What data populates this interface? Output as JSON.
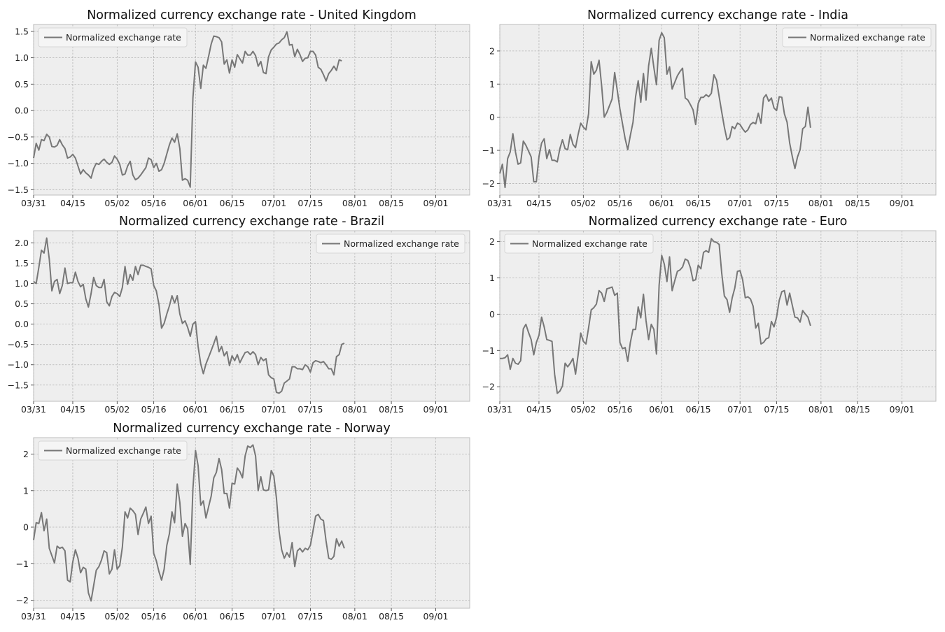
{
  "chart_data": [
    {
      "type": "line",
      "title": "Normalized currency exchange rate - United Kingdom",
      "legend_location": "upper left",
      "grid": true,
      "line_color": "#777777",
      "x_tick_labels": [
        "03/31",
        "04/15",
        "05/02",
        "05/16",
        "06/01",
        "06/15",
        "07/01",
        "07/15",
        "08/01",
        "08/15",
        "09/01"
      ],
      "x_tick_dates": [
        "03/31",
        "04/15",
        "05/02",
        "05/16",
        "06/01",
        "06/15",
        "07/01",
        "07/15",
        "08/01",
        "08/15",
        "09/01"
      ],
      "x_range": [
        "03/31",
        "09/14"
      ],
      "ylim": [
        -1.6,
        1.63
      ],
      "y_ticks": [
        -1.5,
        -1.0,
        -0.5,
        0.0,
        0.5,
        1.0,
        1.5
      ],
      "y_tick_format": 1,
      "series": [
        {
          "name": "Normalized exchange rate",
          "x_start": "03/31",
          "values": [
            -0.9,
            -0.62,
            -0.75,
            -0.55,
            -0.57,
            -0.45,
            -0.5,
            -0.68,
            -0.69,
            -0.66,
            -0.55,
            -0.65,
            -0.72,
            -0.9,
            -0.88,
            -0.83,
            -0.9,
            -1.05,
            -1.2,
            -1.12,
            -1.18,
            -1.22,
            -1.28,
            -1.1,
            -1.0,
            -1.02,
            -0.96,
            -0.92,
            -0.98,
            -1.02,
            -0.98,
            -0.86,
            -0.92,
            -1.02,
            -1.22,
            -1.2,
            -1.05,
            -0.96,
            -1.22,
            -1.31,
            -1.28,
            -1.22,
            -1.15,
            -1.08,
            -0.9,
            -0.93,
            -1.08,
            -1.0,
            -1.15,
            -1.12,
            -1.0,
            -0.82,
            -0.65,
            -0.52,
            -0.6,
            -0.44,
            -0.72,
            -1.32,
            -1.29,
            -1.32,
            -1.45,
            0.24,
            0.92,
            0.82,
            0.42,
            0.86,
            0.8,
            1.02,
            1.26,
            1.41,
            1.4,
            1.38,
            1.3,
            0.88,
            0.96,
            0.71,
            0.96,
            0.82,
            1.06,
            0.98,
            0.9,
            1.12,
            1.05,
            1.05,
            1.12,
            1.04,
            0.84,
            0.93,
            0.72,
            0.7,
            1.02,
            1.15,
            1.2,
            1.26,
            1.28,
            1.34,
            1.38,
            1.49,
            1.24,
            1.25,
            1.02,
            1.16,
            1.06,
            0.93,
            0.99,
            1.0,
            1.12,
            1.12,
            1.05,
            0.82,
            0.78,
            0.68,
            0.56,
            0.7,
            0.76,
            0.84,
            0.76,
            0.96,
            0.94
          ]
        }
      ]
    },
    {
      "type": "line",
      "title": "Normalized currency exchange rate - India",
      "legend_location": "upper right",
      "grid": true,
      "line_color": "#777777",
      "x_tick_labels": [
        "03/31",
        "04/15",
        "05/02",
        "05/16",
        "06/01",
        "06/15",
        "07/01",
        "07/15",
        "08/01",
        "08/15",
        "09/01"
      ],
      "x_tick_dates": [
        "03/31",
        "04/15",
        "05/02",
        "05/16",
        "06/01",
        "06/15",
        "07/01",
        "07/15",
        "08/01",
        "08/15",
        "09/01"
      ],
      "x_range": [
        "03/31",
        "09/14"
      ],
      "ylim": [
        -2.35,
        2.8
      ],
      "y_ticks": [
        -2,
        -1,
        0,
        1,
        2
      ],
      "y_tick_format": 0,
      "series": [
        {
          "name": "Normalized exchange rate",
          "x_start": "03/31",
          "values": [
            -1.7,
            -1.42,
            -2.12,
            -1.25,
            -1.05,
            -0.5,
            -1.05,
            -1.42,
            -1.38,
            -0.72,
            -0.85,
            -1.02,
            -1.2,
            -1.95,
            -1.95,
            -1.18,
            -0.78,
            -0.65,
            -1.25,
            -0.98,
            -1.3,
            -1.3,
            -1.35,
            -0.95,
            -0.68,
            -0.95,
            -0.98,
            -0.52,
            -0.82,
            -0.92,
            -0.52,
            -0.18,
            -0.3,
            -0.38,
            0.1,
            1.68,
            1.3,
            1.42,
            1.72,
            0.95,
            0.0,
            0.15,
            0.35,
            0.55,
            1.35,
            0.8,
            0.25,
            -0.2,
            -0.65,
            -0.98,
            -0.55,
            -0.15,
            0.62,
            1.1,
            0.45,
            1.32,
            0.52,
            1.55,
            2.08,
            1.5,
            0.98,
            2.32,
            2.55,
            2.4,
            1.3,
            1.52,
            0.85,
            1.05,
            1.25,
            1.38,
            1.48,
            0.58,
            0.52,
            0.38,
            0.22,
            -0.22,
            0.42,
            0.6,
            0.6,
            0.68,
            0.62,
            0.72,
            1.28,
            1.12,
            0.62,
            0.15,
            -0.3,
            -0.68,
            -0.62,
            -0.28,
            -0.35,
            -0.18,
            -0.22,
            -0.35,
            -0.45,
            -0.38,
            -0.22,
            -0.16,
            -0.2,
            0.12,
            -0.18,
            0.58,
            0.68,
            0.48,
            0.58,
            0.28,
            0.2,
            0.62,
            0.6,
            0.1,
            -0.15,
            -0.78,
            -1.18,
            -1.55,
            -1.2,
            -0.98,
            -0.35,
            -0.28,
            0.3,
            -0.32
          ]
        }
      ]
    },
    {
      "type": "line",
      "title": "Normalized currency exchange rate - Brazil",
      "legend_location": "upper right",
      "grid": true,
      "line_color": "#777777",
      "x_tick_labels": [
        "03/31",
        "04/15",
        "05/02",
        "05/16",
        "06/01",
        "06/15",
        "07/01",
        "07/15",
        "08/01",
        "08/15",
        "09/01"
      ],
      "x_tick_dates": [
        "03/31",
        "04/15",
        "05/02",
        "05/16",
        "06/01",
        "06/15",
        "07/01",
        "07/15",
        "08/01",
        "08/15",
        "09/01"
      ],
      "x_range": [
        "03/31",
        "09/14"
      ],
      "ylim": [
        -1.9,
        2.3
      ],
      "y_ticks": [
        -1.5,
        -1.0,
        -0.5,
        0.0,
        0.5,
        1.0,
        1.5,
        2.0
      ],
      "y_tick_format": 1,
      "series": [
        {
          "name": "Normalized exchange rate",
          "x_start": "03/31",
          "values": [
            1.05,
            1.0,
            1.4,
            1.82,
            1.75,
            2.12,
            1.6,
            0.82,
            1.05,
            1.1,
            0.75,
            0.95,
            1.38,
            1.0,
            1.02,
            1.02,
            1.28,
            1.05,
            0.92,
            0.98,
            0.62,
            0.42,
            0.75,
            1.15,
            0.95,
            0.9,
            0.9,
            1.1,
            0.55,
            0.45,
            0.68,
            0.78,
            0.75,
            0.68,
            0.9,
            1.42,
            0.98,
            1.22,
            1.08,
            1.42,
            1.22,
            1.45,
            1.45,
            1.42,
            1.4,
            1.36,
            0.95,
            0.82,
            0.48,
            -0.1,
            0.02,
            0.25,
            0.45,
            0.7,
            0.52,
            0.7,
            0.25,
            0.02,
            0.08,
            -0.08,
            -0.3,
            0.0,
            0.06,
            -0.55,
            -0.98,
            -1.22,
            -0.98,
            -0.82,
            -0.65,
            -0.48,
            -0.3,
            -0.68,
            -0.55,
            -0.78,
            -0.68,
            -1.02,
            -0.78,
            -0.9,
            -0.75,
            -0.95,
            -0.82,
            -0.7,
            -0.68,
            -0.75,
            -0.68,
            -0.75,
            -1.0,
            -0.82,
            -0.9,
            -0.85,
            -1.25,
            -1.32,
            -1.35,
            -1.68,
            -1.7,
            -1.65,
            -1.45,
            -1.4,
            -1.35,
            -1.05,
            -1.05,
            -1.1,
            -1.1,
            -1.12,
            -1.0,
            -1.05,
            -1.18,
            -0.95,
            -0.9,
            -0.92,
            -0.95,
            -0.92,
            -1.0,
            -1.1,
            -1.1,
            -1.25,
            -0.8,
            -0.75,
            -0.5,
            -0.47
          ]
        }
      ]
    },
    {
      "type": "line",
      "title": "Normalized currency exchange rate - Euro",
      "legend_location": "upper left",
      "grid": true,
      "line_color": "#777777",
      "x_tick_labels": [
        "03/31",
        "04/15",
        "05/02",
        "05/16",
        "06/01",
        "06/15",
        "07/01",
        "07/15",
        "08/01",
        "08/15",
        "09/01"
      ],
      "x_tick_dates": [
        "03/31",
        "04/15",
        "05/02",
        "05/16",
        "06/01",
        "06/15",
        "07/01",
        "07/15",
        "08/01",
        "08/15",
        "09/01"
      ],
      "x_range": [
        "03/31",
        "09/14"
      ],
      "ylim": [
        -2.4,
        2.3
      ],
      "y_ticks": [
        -2,
        -1,
        0,
        1,
        2
      ],
      "y_tick_format": 0,
      "series": [
        {
          "name": "Normalized exchange rate",
          "x_start": "03/31",
          "values": [
            -1.22,
            -1.22,
            -1.2,
            -1.12,
            -1.52,
            -1.22,
            -1.35,
            -1.38,
            -1.28,
            -0.4,
            -0.28,
            -0.5,
            -0.7,
            -1.12,
            -0.78,
            -0.58,
            -0.08,
            -0.35,
            -0.7,
            -0.72,
            -0.75,
            -1.65,
            -2.18,
            -2.12,
            -1.98,
            -1.35,
            -1.45,
            -1.35,
            -1.22,
            -1.65,
            -1.12,
            -0.52,
            -0.75,
            -0.82,
            -0.38,
            0.12,
            0.18,
            0.28,
            0.65,
            0.58,
            0.35,
            0.7,
            0.72,
            0.75,
            0.52,
            0.58,
            -0.78,
            -0.95,
            -0.92,
            -1.3,
            -0.78,
            -0.42,
            -0.42,
            0.2,
            -0.1,
            0.55,
            -0.18,
            -0.7,
            -0.28,
            -0.42,
            -1.1,
            0.8,
            1.62,
            1.38,
            0.9,
            1.58,
            0.65,
            0.92,
            1.18,
            1.22,
            1.3,
            1.52,
            1.48,
            1.28,
            0.92,
            0.95,
            1.35,
            1.25,
            1.7,
            1.75,
            1.7,
            2.08,
            2.0,
            1.98,
            1.92,
            1.12,
            0.5,
            0.4,
            0.05,
            0.45,
            0.72,
            1.18,
            1.2,
            0.95,
            0.45,
            0.48,
            0.42,
            0.22,
            -0.38,
            -0.25,
            -0.82,
            -0.78,
            -0.68,
            -0.65,
            -0.2,
            -0.35,
            -0.08,
            0.38,
            0.62,
            0.65,
            0.25,
            0.58,
            0.25,
            -0.08,
            -0.1,
            -0.22,
            0.1,
            0.0,
            -0.08,
            -0.32
          ]
        }
      ]
    },
    {
      "type": "line",
      "title": "Normalized currency exchange rate - Norway",
      "legend_location": "upper left",
      "grid": true,
      "line_color": "#777777",
      "x_tick_labels": [
        "03/31",
        "04/15",
        "05/02",
        "05/16",
        "06/01",
        "06/15",
        "07/01",
        "07/15",
        "08/01",
        "08/15",
        "09/01"
      ],
      "x_tick_dates": [
        "03/31",
        "04/15",
        "05/02",
        "05/16",
        "06/01",
        "06/15",
        "07/01",
        "07/15",
        "08/01",
        "08/15",
        "09/01"
      ],
      "x_range": [
        "03/31",
        "09/14"
      ],
      "ylim": [
        -2.22,
        2.45
      ],
      "y_ticks": [
        -2,
        -1,
        0,
        1,
        2
      ],
      "y_tick_format": 0,
      "series": [
        {
          "name": "Normalized exchange rate",
          "x_start": "03/31",
          "values": [
            -0.35,
            0.12,
            0.1,
            0.4,
            -0.1,
            0.22,
            -0.58,
            -0.78,
            -0.98,
            -0.52,
            -0.58,
            -0.55,
            -0.65,
            -1.45,
            -1.5,
            -0.95,
            -0.62,
            -0.85,
            -1.25,
            -1.1,
            -1.15,
            -1.8,
            -2.02,
            -1.6,
            -1.18,
            -1.08,
            -0.9,
            -0.65,
            -0.7,
            -1.28,
            -1.15,
            -0.62,
            -1.15,
            -1.05,
            -0.55,
            0.42,
            0.25,
            0.52,
            0.45,
            0.35,
            -0.2,
            0.22,
            0.38,
            0.55,
            0.1,
            0.3,
            -0.72,
            -0.92,
            -1.22,
            -1.45,
            -1.15,
            -0.5,
            -0.18,
            0.42,
            0.12,
            1.18,
            0.68,
            -0.25,
            0.1,
            -0.05,
            -1.02,
            1.05,
            2.1,
            1.68,
            0.6,
            0.72,
            0.25,
            0.55,
            0.85,
            1.35,
            1.5,
            1.88,
            1.58,
            0.92,
            0.92,
            0.52,
            1.2,
            1.18,
            1.62,
            1.52,
            1.35,
            1.95,
            2.22,
            2.18,
            2.25,
            1.95,
            1.0,
            1.38,
            1.02,
            1.0,
            1.02,
            1.55,
            1.4,
            0.8,
            -0.12,
            -0.62,
            -0.85,
            -0.7,
            -0.82,
            -0.42,
            -1.08,
            -0.65,
            -0.58,
            -0.68,
            -0.58,
            -0.62,
            -0.5,
            -0.1,
            0.3,
            0.35,
            0.22,
            0.18,
            -0.38,
            -0.85,
            -0.88,
            -0.8,
            -0.32,
            -0.52,
            -0.38,
            -0.58
          ]
        }
      ]
    }
  ]
}
